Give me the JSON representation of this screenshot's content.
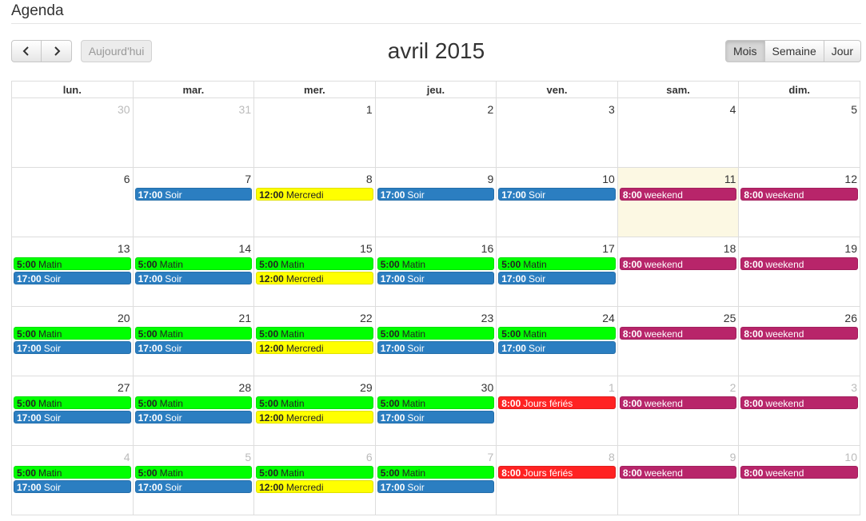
{
  "header": {
    "title": "Agenda"
  },
  "toolbar": {
    "prev_icon": "chevron-left-icon",
    "next_icon": "chevron-right-icon",
    "today_label": "Aujourd'hui",
    "month_title": "avril 2015",
    "views": [
      {
        "label": "Mois",
        "active": true
      },
      {
        "label": "Semaine",
        "active": false
      },
      {
        "label": "Jour",
        "active": false
      }
    ]
  },
  "colors": {
    "matin": "#00ff00",
    "soir": "#2b7ec1",
    "mercredi": "#ffff00",
    "weekend": "#b8256a",
    "feries": "#ff2222",
    "today_bg": "#fcf8e3"
  },
  "calendar": {
    "weekdays": [
      "lun.",
      "mar.",
      "mer.",
      "jeu.",
      "ven.",
      "sam.",
      "dim."
    ],
    "weeks": [
      [
        {
          "day": "30",
          "other": true,
          "events": []
        },
        {
          "day": "31",
          "other": true,
          "events": []
        },
        {
          "day": "1",
          "events": []
        },
        {
          "day": "2",
          "events": []
        },
        {
          "day": "3",
          "events": []
        },
        {
          "day": "4",
          "events": []
        },
        {
          "day": "5",
          "events": []
        }
      ],
      [
        {
          "day": "6",
          "events": []
        },
        {
          "day": "7",
          "events": [
            {
              "time": "17:00",
              "title": "Soir",
              "kind": "soir"
            }
          ]
        },
        {
          "day": "8",
          "events": [
            {
              "time": "12:00",
              "title": "Mercredi",
              "kind": "mercredi"
            }
          ]
        },
        {
          "day": "9",
          "events": [
            {
              "time": "17:00",
              "title": "Soir",
              "kind": "soir"
            }
          ]
        },
        {
          "day": "10",
          "events": [
            {
              "time": "17:00",
              "title": "Soir",
              "kind": "soir"
            }
          ]
        },
        {
          "day": "11",
          "today": true,
          "events": [
            {
              "time": "8:00",
              "title": "weekend",
              "kind": "weekend"
            }
          ]
        },
        {
          "day": "12",
          "events": [
            {
              "time": "8:00",
              "title": "weekend",
              "kind": "weekend"
            }
          ]
        }
      ],
      [
        {
          "day": "13",
          "events": [
            {
              "time": "5:00",
              "title": "Matin",
              "kind": "matin"
            },
            {
              "time": "17:00",
              "title": "Soir",
              "kind": "soir"
            }
          ]
        },
        {
          "day": "14",
          "events": [
            {
              "time": "5:00",
              "title": "Matin",
              "kind": "matin"
            },
            {
              "time": "17:00",
              "title": "Soir",
              "kind": "soir"
            }
          ]
        },
        {
          "day": "15",
          "events": [
            {
              "time": "5:00",
              "title": "Matin",
              "kind": "matin"
            },
            {
              "time": "12:00",
              "title": "Mercredi",
              "kind": "mercredi"
            }
          ]
        },
        {
          "day": "16",
          "events": [
            {
              "time": "5:00",
              "title": "Matin",
              "kind": "matin"
            },
            {
              "time": "17:00",
              "title": "Soir",
              "kind": "soir"
            }
          ]
        },
        {
          "day": "17",
          "events": [
            {
              "time": "5:00",
              "title": "Matin",
              "kind": "matin"
            },
            {
              "time": "17:00",
              "title": "Soir",
              "kind": "soir"
            }
          ]
        },
        {
          "day": "18",
          "events": [
            {
              "time": "8:00",
              "title": "weekend",
              "kind": "weekend"
            }
          ]
        },
        {
          "day": "19",
          "events": [
            {
              "time": "8:00",
              "title": "weekend",
              "kind": "weekend"
            }
          ]
        }
      ],
      [
        {
          "day": "20",
          "events": [
            {
              "time": "5:00",
              "title": "Matin",
              "kind": "matin"
            },
            {
              "time": "17:00",
              "title": "Soir",
              "kind": "soir"
            }
          ]
        },
        {
          "day": "21",
          "events": [
            {
              "time": "5:00",
              "title": "Matin",
              "kind": "matin"
            },
            {
              "time": "17:00",
              "title": "Soir",
              "kind": "soir"
            }
          ]
        },
        {
          "day": "22",
          "events": [
            {
              "time": "5:00",
              "title": "Matin",
              "kind": "matin"
            },
            {
              "time": "12:00",
              "title": "Mercredi",
              "kind": "mercredi"
            }
          ]
        },
        {
          "day": "23",
          "events": [
            {
              "time": "5:00",
              "title": "Matin",
              "kind": "matin"
            },
            {
              "time": "17:00",
              "title": "Soir",
              "kind": "soir"
            }
          ]
        },
        {
          "day": "24",
          "events": [
            {
              "time": "5:00",
              "title": "Matin",
              "kind": "matin"
            },
            {
              "time": "17:00",
              "title": "Soir",
              "kind": "soir"
            }
          ]
        },
        {
          "day": "25",
          "events": [
            {
              "time": "8:00",
              "title": "weekend",
              "kind": "weekend"
            }
          ]
        },
        {
          "day": "26",
          "events": [
            {
              "time": "8:00",
              "title": "weekend",
              "kind": "weekend"
            }
          ]
        }
      ],
      [
        {
          "day": "27",
          "events": [
            {
              "time": "5:00",
              "title": "Matin",
              "kind": "matin"
            },
            {
              "time": "17:00",
              "title": "Soir",
              "kind": "soir"
            }
          ]
        },
        {
          "day": "28",
          "events": [
            {
              "time": "5:00",
              "title": "Matin",
              "kind": "matin"
            },
            {
              "time": "17:00",
              "title": "Soir",
              "kind": "soir"
            }
          ]
        },
        {
          "day": "29",
          "events": [
            {
              "time": "5:00",
              "title": "Matin",
              "kind": "matin"
            },
            {
              "time": "12:00",
              "title": "Mercredi",
              "kind": "mercredi"
            }
          ]
        },
        {
          "day": "30",
          "events": [
            {
              "time": "5:00",
              "title": "Matin",
              "kind": "matin"
            },
            {
              "time": "17:00",
              "title": "Soir",
              "kind": "soir"
            }
          ]
        },
        {
          "day": "1",
          "other": true,
          "events": [
            {
              "time": "8:00",
              "title": "Jours fériés",
              "kind": "feries"
            }
          ]
        },
        {
          "day": "2",
          "other": true,
          "events": [
            {
              "time": "8:00",
              "title": "weekend",
              "kind": "weekend"
            }
          ]
        },
        {
          "day": "3",
          "other": true,
          "events": [
            {
              "time": "8:00",
              "title": "weekend",
              "kind": "weekend"
            }
          ]
        }
      ],
      [
        {
          "day": "4",
          "other": true,
          "events": [
            {
              "time": "5:00",
              "title": "Matin",
              "kind": "matin"
            },
            {
              "time": "17:00",
              "title": "Soir",
              "kind": "soir"
            }
          ]
        },
        {
          "day": "5",
          "other": true,
          "events": [
            {
              "time": "5:00",
              "title": "Matin",
              "kind": "matin"
            },
            {
              "time": "17:00",
              "title": "Soir",
              "kind": "soir"
            }
          ]
        },
        {
          "day": "6",
          "other": true,
          "events": [
            {
              "time": "5:00",
              "title": "Matin",
              "kind": "matin"
            },
            {
              "time": "12:00",
              "title": "Mercredi",
              "kind": "mercredi"
            }
          ]
        },
        {
          "day": "7",
          "other": true,
          "events": [
            {
              "time": "5:00",
              "title": "Matin",
              "kind": "matin"
            },
            {
              "time": "17:00",
              "title": "Soir",
              "kind": "soir"
            }
          ]
        },
        {
          "day": "8",
          "other": true,
          "events": [
            {
              "time": "8:00",
              "title": "Jours fériés",
              "kind": "feries"
            }
          ]
        },
        {
          "day": "9",
          "other": true,
          "events": [
            {
              "time": "8:00",
              "title": "weekend",
              "kind": "weekend"
            }
          ]
        },
        {
          "day": "10",
          "other": true,
          "events": [
            {
              "time": "8:00",
              "title": "weekend",
              "kind": "weekend"
            }
          ]
        }
      ]
    ]
  }
}
